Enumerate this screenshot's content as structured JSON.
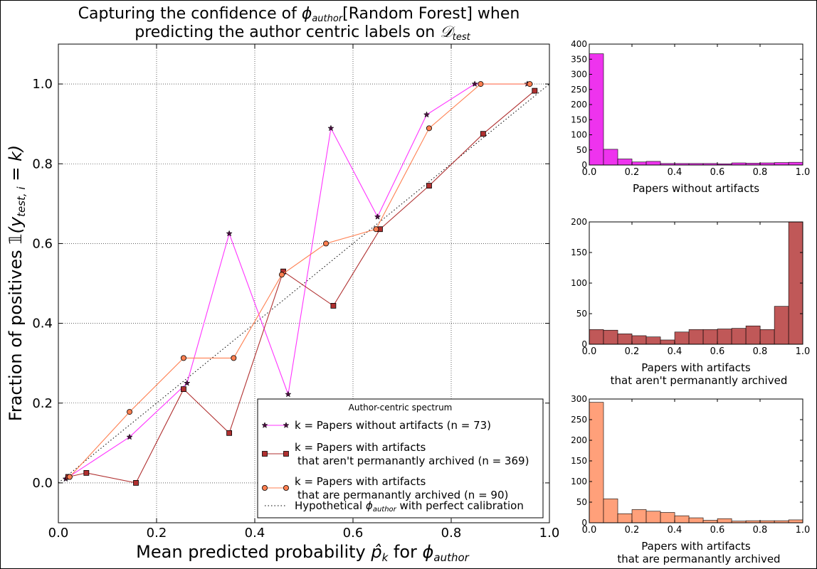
{
  "colors": {
    "no_artifacts": "#ff33ff",
    "not_archived": "#b03030",
    "archived": "#ff7f50",
    "hist_no_artifacts": "#ee33ee",
    "hist_not_archived": "#c05858",
    "hist_archived": "#ffa07a",
    "grid": "#000000",
    "dark_marker": "#4a1040"
  },
  "chart_data": [
    {
      "type": "line",
      "title_line1_pre": "Capturing the confidence of ",
      "title_phi": "ϕ",
      "title_phi_sub": "author",
      "title_line1_post": "[Random Forest] when",
      "title_line2_pre": "predicting the author centric labels on ",
      "title_D": "𝒟",
      "title_D_sub": "test",
      "xlabel_pre": "Mean predicted probability ",
      "xlabel_p": "p̂",
      "xlabel_p_sub": "k",
      "xlabel_mid": " for ",
      "xlabel_phi": "ϕ",
      "xlabel_phi_sub": "author",
      "ylabel_pre": "Fraction of positives ",
      "ylabel_indicator": "𝟙(y",
      "ylabel_sub": "test, i",
      "ylabel_post": " = k)",
      "xlim": [
        0.0,
        1.0
      ],
      "ylim": [
        -0.1,
        1.1
      ],
      "xticks": [
        "0.0",
        "0.2",
        "0.4",
        "0.6",
        "0.8",
        "1.0"
      ],
      "yticks": [
        "0.0",
        "0.2",
        "0.4",
        "0.6",
        "0.8",
        "1.0"
      ],
      "grid": true,
      "legend_position": "lower-right",
      "legend_title": "Author-centric spectrum",
      "series": [
        {
          "key": "no_artifacts",
          "marker": "star",
          "legend_line1": "k = Papers without artifacts (n = 73)",
          "legend_line2": "",
          "points": [
            [
              0.015,
              0.01
            ],
            [
              0.145,
              0.115
            ],
            [
              0.262,
              0.25
            ],
            [
              0.348,
              0.625
            ],
            [
              0.468,
              0.222
            ],
            [
              0.555,
              0.889
            ],
            [
              0.65,
              0.667
            ],
            [
              0.75,
              0.923
            ],
            [
              0.848,
              1.0
            ],
            [
              0.955,
              1.0
            ]
          ]
        },
        {
          "key": "not_archived",
          "marker": "square",
          "legend_line1": "k = Papers with artifacts",
          "legend_line2": "that aren't permanantly archived (n = 369)",
          "points": [
            [
              0.02,
              0.015
            ],
            [
              0.057,
              0.025
            ],
            [
              0.158,
              0.0
            ],
            [
              0.255,
              0.235
            ],
            [
              0.348,
              0.125
            ],
            [
              0.458,
              0.53
            ],
            [
              0.56,
              0.444
            ],
            [
              0.655,
              0.636
            ],
            [
              0.755,
              0.745
            ],
            [
              0.865,
              0.875
            ],
            [
              0.97,
              0.983
            ]
          ]
        },
        {
          "key": "archived",
          "marker": "circle",
          "legend_line1": "k = Papers with artifacts",
          "legend_line2": "that are permanantly archived (n = 90)",
          "points": [
            [
              0.023,
              0.015
            ],
            [
              0.145,
              0.178
            ],
            [
              0.255,
              0.313
            ],
            [
              0.357,
              0.313
            ],
            [
              0.455,
              0.522
            ],
            [
              0.545,
              0.6
            ],
            [
              0.647,
              0.636
            ],
            [
              0.755,
              0.889
            ],
            [
              0.86,
              1.0
            ],
            [
              0.96,
              1.0
            ]
          ]
        }
      ],
      "perfect_calibration_label": "Hypothetical ϕ_author with perfect calibration"
    },
    {
      "type": "bar",
      "key": "hist_no_artifacts",
      "xlabel_line1": "Papers without artifacts",
      "xlabel_line2": "",
      "xlim": [
        0.0,
        1.0
      ],
      "ylim": [
        0,
        400
      ],
      "xticks": [
        "0.0",
        "0.2",
        "0.4",
        "0.6",
        "0.8",
        "1.0"
      ],
      "yticks": [
        "0",
        "50",
        "100",
        "150",
        "200",
        "250",
        "300",
        "350",
        "400"
      ],
      "bin_width": 0.0667,
      "values": [
        368,
        52,
        20,
        10,
        12,
        5,
        5,
        5,
        5,
        4,
        7,
        6,
        7,
        8,
        9
      ]
    },
    {
      "type": "bar",
      "key": "hist_not_archived",
      "xlabel_line1": "Papers with artifacts",
      "xlabel_line2": "that aren't permanantly archived",
      "xlim": [
        0.0,
        1.0
      ],
      "ylim": [
        0,
        200
      ],
      "xticks": [
        "0.0",
        "0.2",
        "0.4",
        "0.6",
        "0.8",
        "1.0"
      ],
      "yticks": [
        "0",
        "50",
        "100",
        "150",
        "200"
      ],
      "bin_width": 0.0667,
      "values": [
        24,
        23,
        17,
        14,
        12,
        7,
        20,
        24,
        24,
        25,
        26,
        30,
        24,
        62,
        200
      ]
    },
    {
      "type": "bar",
      "key": "hist_archived",
      "xlabel_line1": "Papers with artifacts",
      "xlabel_line2": "that are permanantly archived",
      "xlim": [
        0.0,
        1.0
      ],
      "ylim": [
        0,
        300
      ],
      "xticks": [
        "0.0",
        "0.2",
        "0.4",
        "0.6",
        "0.8",
        "1.0"
      ],
      "yticks": [
        "0",
        "50",
        "100",
        "150",
        "200",
        "250",
        "300"
      ],
      "bin_width": 0.0667,
      "values": [
        292,
        58,
        22,
        32,
        28,
        25,
        17,
        12,
        6,
        10,
        4,
        5,
        5,
        5,
        7
      ]
    }
  ]
}
